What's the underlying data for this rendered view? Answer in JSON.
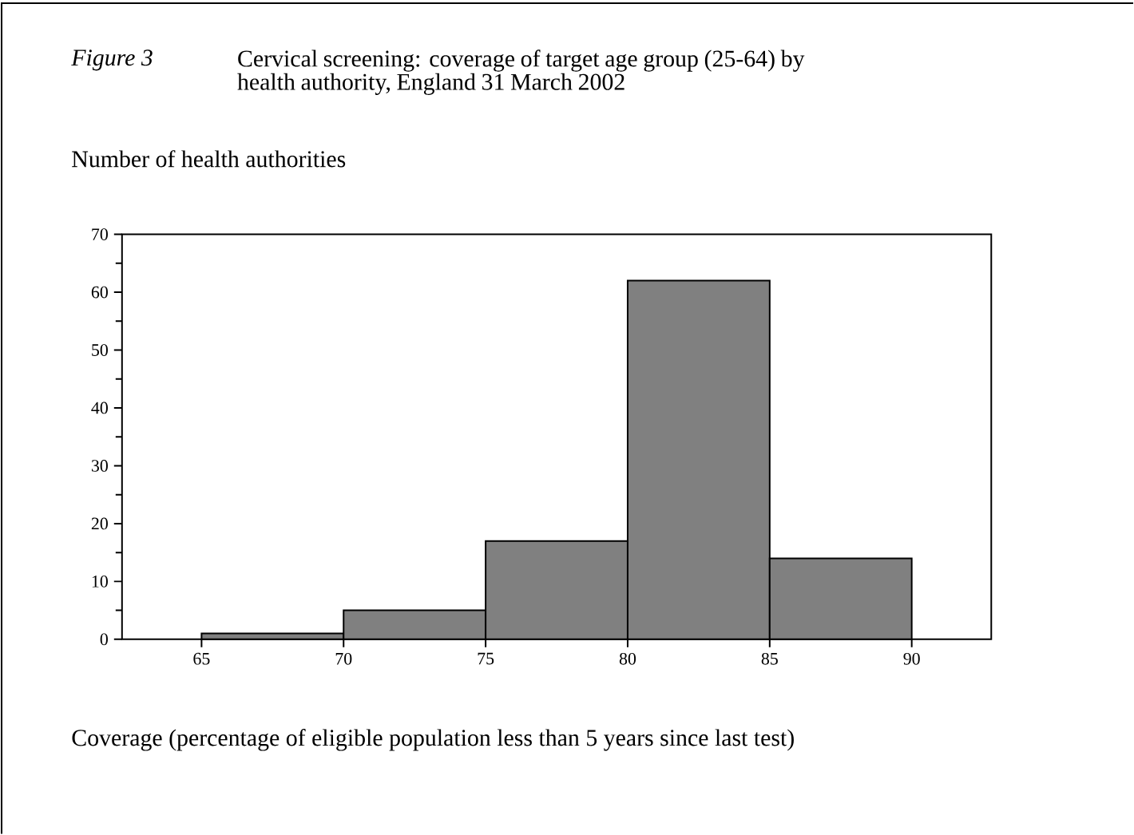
{
  "chart_data": {
    "type": "histogram",
    "title": "Cervical screening: coverage of target age group (25-64) by health authority, England 31 March 2002",
    "annotations": [
      "Figure  3"
    ],
    "ylabel": "Number of health authorities",
    "xlabel": "Coverage (percentage of eligible population less than 5 years since last test)",
    "bins": [
      65,
      70,
      75,
      80,
      85,
      90
    ],
    "values": [
      1,
      5,
      17,
      62,
      14
    ],
    "color": "#808080",
    "xlim": [
      62.2,
      92.8
    ],
    "ylim": [
      0,
      70
    ],
    "xticks": [
      65,
      70,
      75,
      80,
      85,
      90
    ],
    "yticks": [
      0,
      10,
      20,
      30,
      40,
      50,
      60,
      70
    ]
  }
}
